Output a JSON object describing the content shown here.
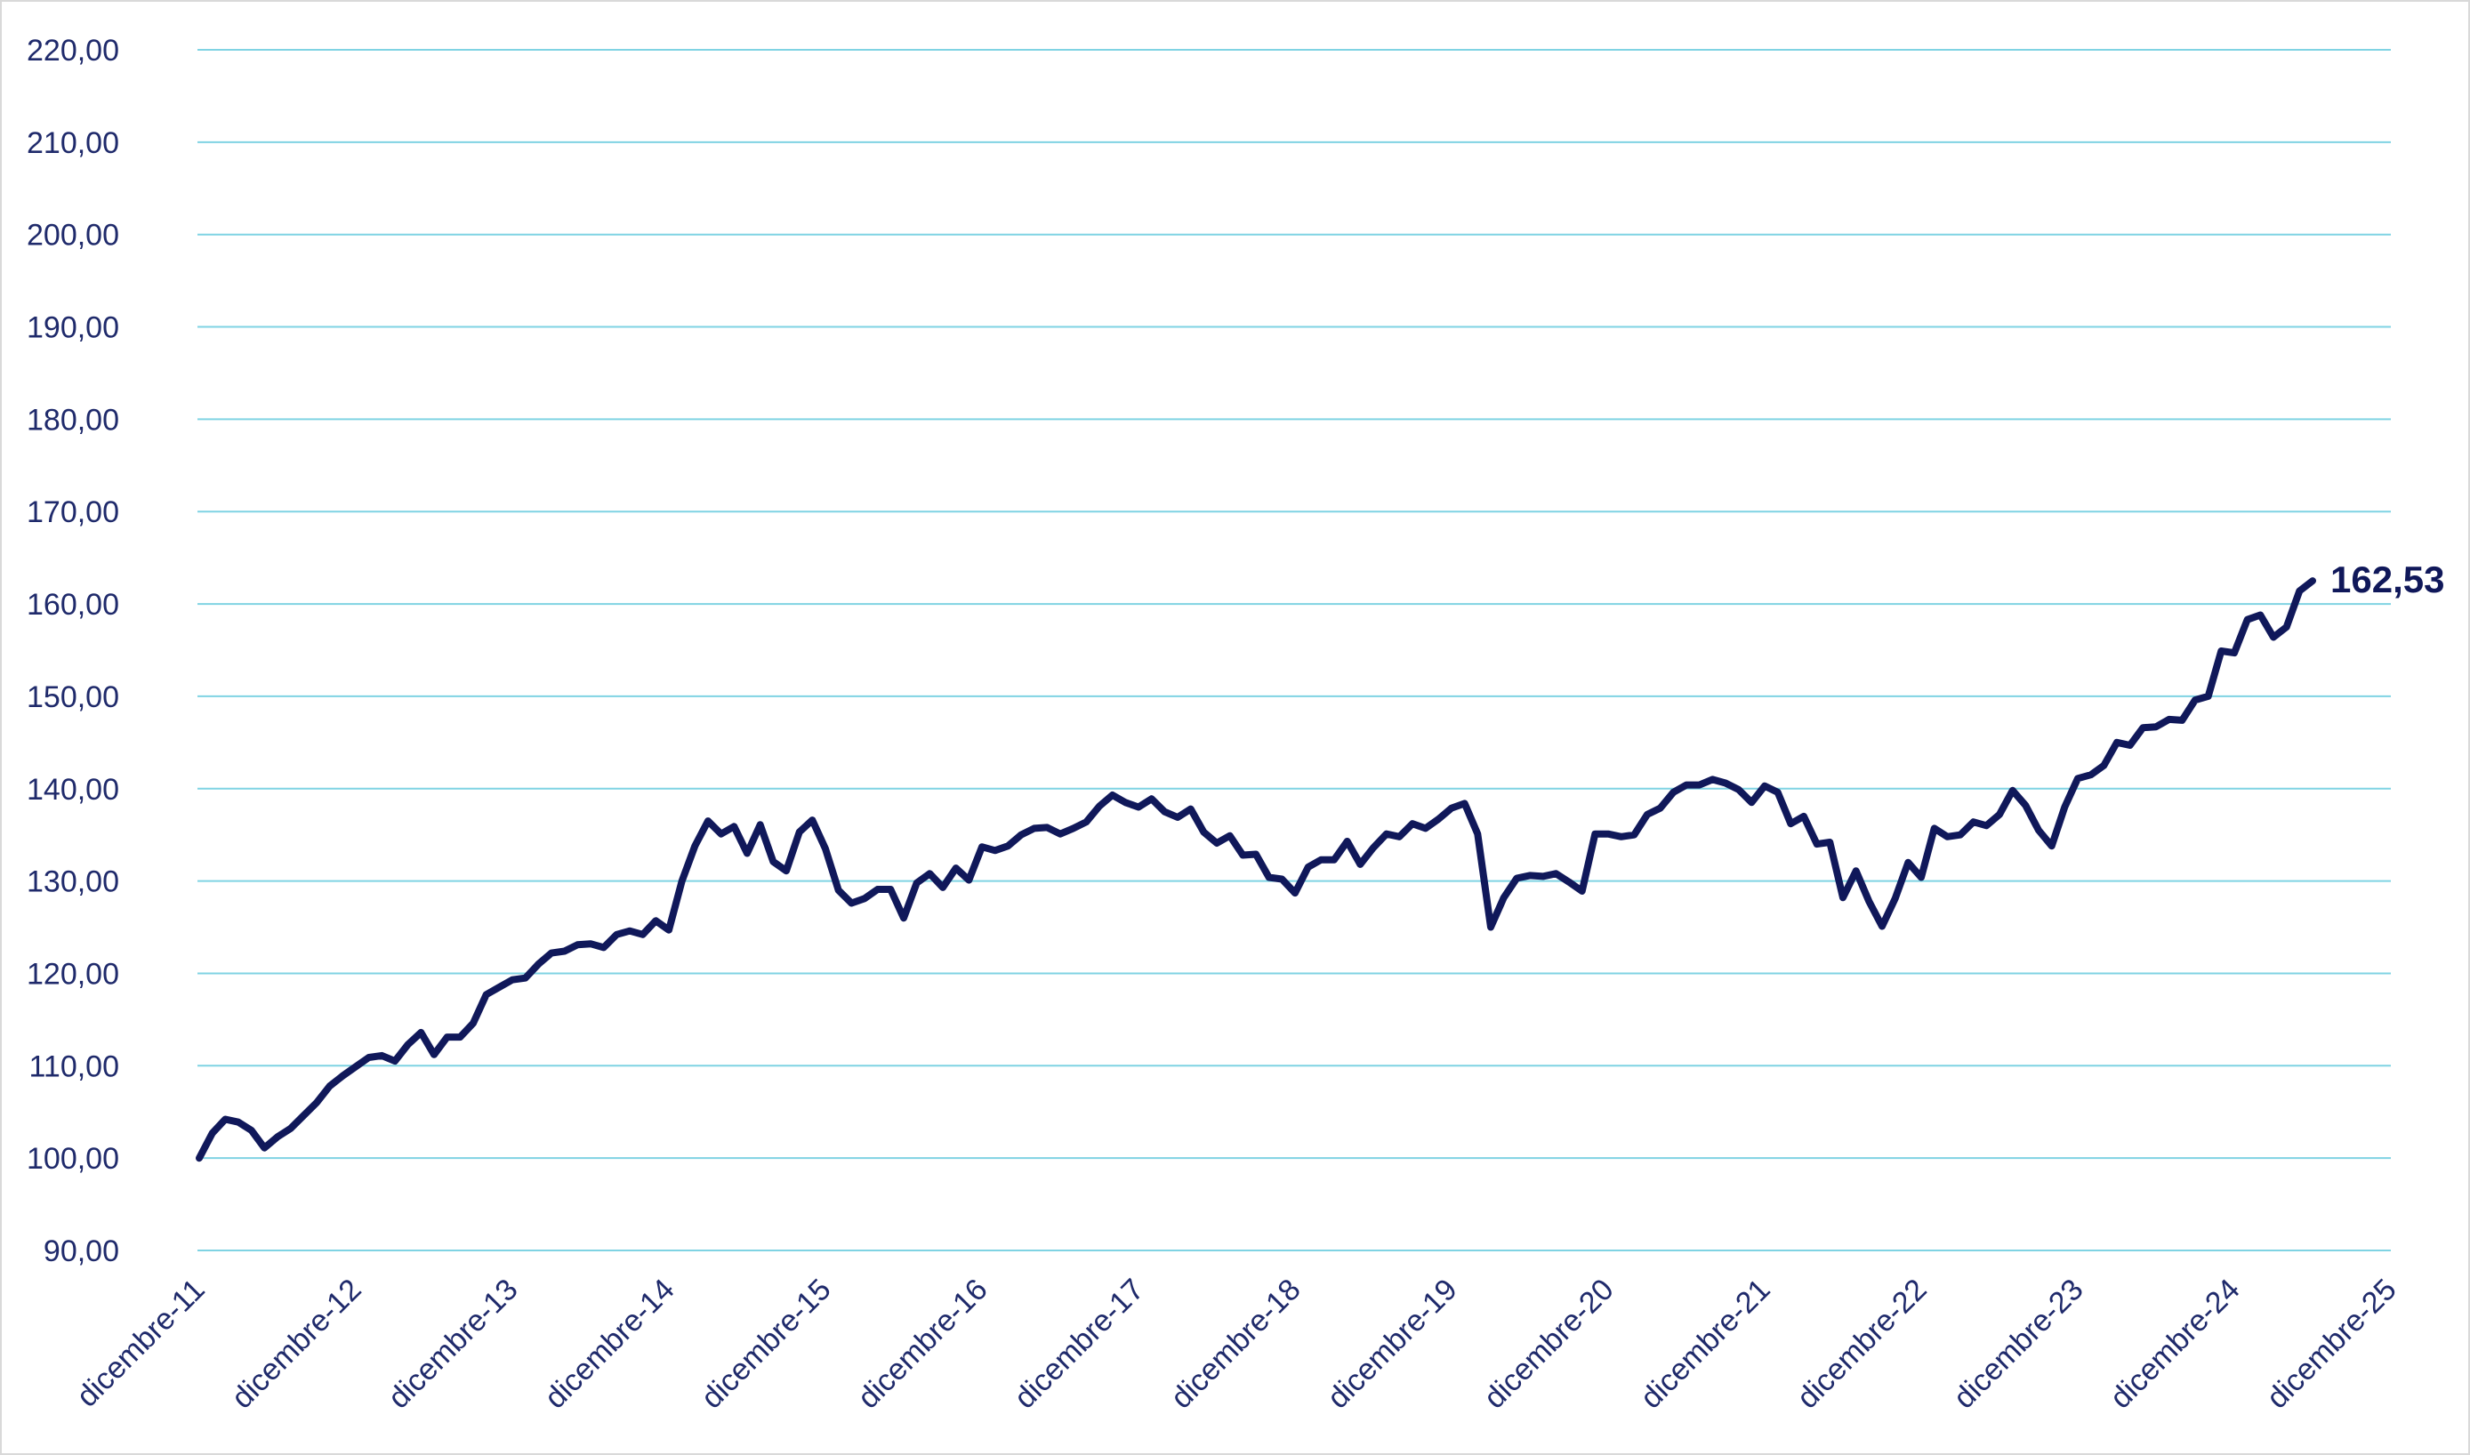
{
  "chart_data": {
    "type": "line",
    "title": "",
    "xlabel": "",
    "ylabel": "",
    "ylim": [
      90,
      220
    ],
    "y_ticks": [
      "90,00",
      "100,00",
      "110,00",
      "120,00",
      "130,00",
      "140,00",
      "150,00",
      "160,00",
      "170,00",
      "180,00",
      "190,00",
      "200,00",
      "210,00",
      "220,00"
    ],
    "x_ticks": [
      "dicembre-11",
      "dicembre-12",
      "dicembre-13",
      "dicembre-14",
      "dicembre-15",
      "dicembre-16",
      "dicembre-17",
      "dicembre-18",
      "dicembre-19",
      "dicembre-20",
      "dicembre-21",
      "dicembre-22",
      "dicembre-23",
      "dicembre-24",
      "dicembre-25"
    ],
    "grid": true,
    "legend": "none",
    "end_label": "162,53",
    "colors": {
      "line": "#10185a",
      "grid": "#7fd3e3",
      "axis_text": "#1f2a6b"
    },
    "series": [
      {
        "x_start": "dicembre-11",
        "frequency": "monthly",
        "values": [
          100.0,
          102.7,
          104.2,
          103.9,
          103.0,
          101.1,
          102.3,
          103.2,
          104.6,
          106.0,
          107.8,
          108.9,
          109.9,
          110.9,
          111.1,
          110.5,
          112.3,
          113.6,
          111.2,
          113.1,
          113.1,
          114.6,
          117.7,
          118.5,
          119.3,
          119.5,
          121.0,
          122.2,
          122.4,
          123.1,
          123.2,
          122.8,
          124.2,
          124.6,
          124.2,
          125.7,
          124.7,
          130.0,
          133.8,
          136.5,
          135.1,
          135.9,
          133.0,
          136.1,
          132.1,
          131.1,
          135.3,
          136.6,
          133.5,
          129.0,
          127.6,
          128.1,
          129.1,
          129.1,
          126.0,
          129.8,
          130.8,
          129.3,
          131.4,
          130.1,
          133.7,
          133.3,
          133.8,
          135.0,
          135.7,
          135.8,
          135.1,
          135.7,
          136.4,
          138.1,
          139.3,
          138.5,
          138.0,
          138.9,
          137.5,
          136.9,
          137.8,
          135.3,
          134.1,
          134.9,
          132.8,
          132.9,
          130.4,
          130.2,
          128.7,
          131.5,
          132.3,
          132.3,
          134.3,
          131.8,
          133.6,
          135.1,
          134.8,
          136.2,
          135.7,
          136.7,
          137.9,
          138.4,
          135.1,
          125.0,
          128.2,
          130.3,
          130.6,
          130.5,
          130.8,
          129.9,
          128.9,
          135.1,
          135.1,
          134.8,
          135.0,
          137.2,
          137.9,
          139.6,
          140.4,
          140.4,
          141.0,
          140.6,
          139.9,
          138.5,
          140.3,
          139.6,
          136.2,
          137.0,
          134.0,
          134.2,
          128.2,
          131.1,
          127.8,
          125.1,
          128.1,
          132.0,
          130.4,
          135.7,
          134.8,
          135.0,
          136.4,
          136.0,
          137.2,
          139.8,
          138.2,
          135.5,
          133.8,
          138.0,
          141.1,
          141.5,
          142.5,
          145.0,
          144.7,
          146.6,
          146.7,
          147.5,
          147.4,
          149.6,
          150.0,
          154.9,
          154.7,
          158.3,
          158.8,
          156.4,
          157.5,
          161.4,
          162.5
        ]
      }
    ]
  }
}
